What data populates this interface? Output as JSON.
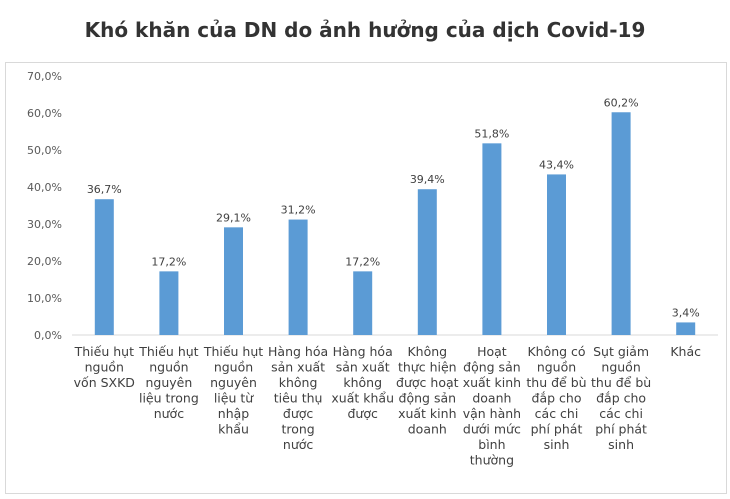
{
  "chart_data": {
    "type": "bar",
    "title": "Khó khăn của DN do ảnh hưởng của dịch Covid-19",
    "xlabel": "",
    "ylabel": "",
    "ylim": [
      0,
      70
    ],
    "yticks": [
      "0,0%",
      "10,0%",
      "20,0%",
      "30,0%",
      "40,0%",
      "50,0%",
      "60,0%",
      "70,0%"
    ],
    "grid": false,
    "legend": "none",
    "bar_color": "#5b9bd5",
    "categories": [
      [
        "Thiếu hụt",
        "nguồn",
        "vốn SXKD"
      ],
      [
        "Thiếu hụt",
        "nguồn",
        "nguyên",
        "liệu trong",
        "nước"
      ],
      [
        "Thiếu hụt",
        "nguồn",
        "nguyên",
        "liệu từ",
        "nhập",
        "khẩu"
      ],
      [
        "Hàng hóa",
        "sản xuất",
        "không",
        "tiêu thụ",
        "được",
        "trong",
        "nước"
      ],
      [
        "Hàng hóa",
        "sản xuất",
        "không",
        "xuất khẩu",
        "được"
      ],
      [
        "Không",
        "thực hiện",
        "được hoạt",
        "động sản",
        "xuất kinh",
        "doanh"
      ],
      [
        "Hoạt",
        "động sản",
        "xuất kinh",
        "doanh",
        "vận hành",
        "dưới mức",
        "bình",
        "thường"
      ],
      [
        "Không có",
        "nguồn",
        "thu để bù",
        "đắp cho",
        "các chi",
        "phí phát",
        "sinh"
      ],
      [
        "Sụt giảm",
        "nguồn",
        "thu để bù",
        "đắp cho",
        "các chi",
        "phí phát",
        "sinh"
      ],
      [
        "Khác"
      ]
    ],
    "values": [
      36.7,
      17.2,
      29.1,
      31.2,
      17.2,
      39.4,
      51.8,
      43.4,
      60.2,
      3.4
    ],
    "data_labels": [
      "36,7%",
      "17,2%",
      "29,1%",
      "31,2%",
      "17,2%",
      "39,4%",
      "51,8%",
      "43,4%",
      "60,2%",
      "3,4%"
    ]
  }
}
